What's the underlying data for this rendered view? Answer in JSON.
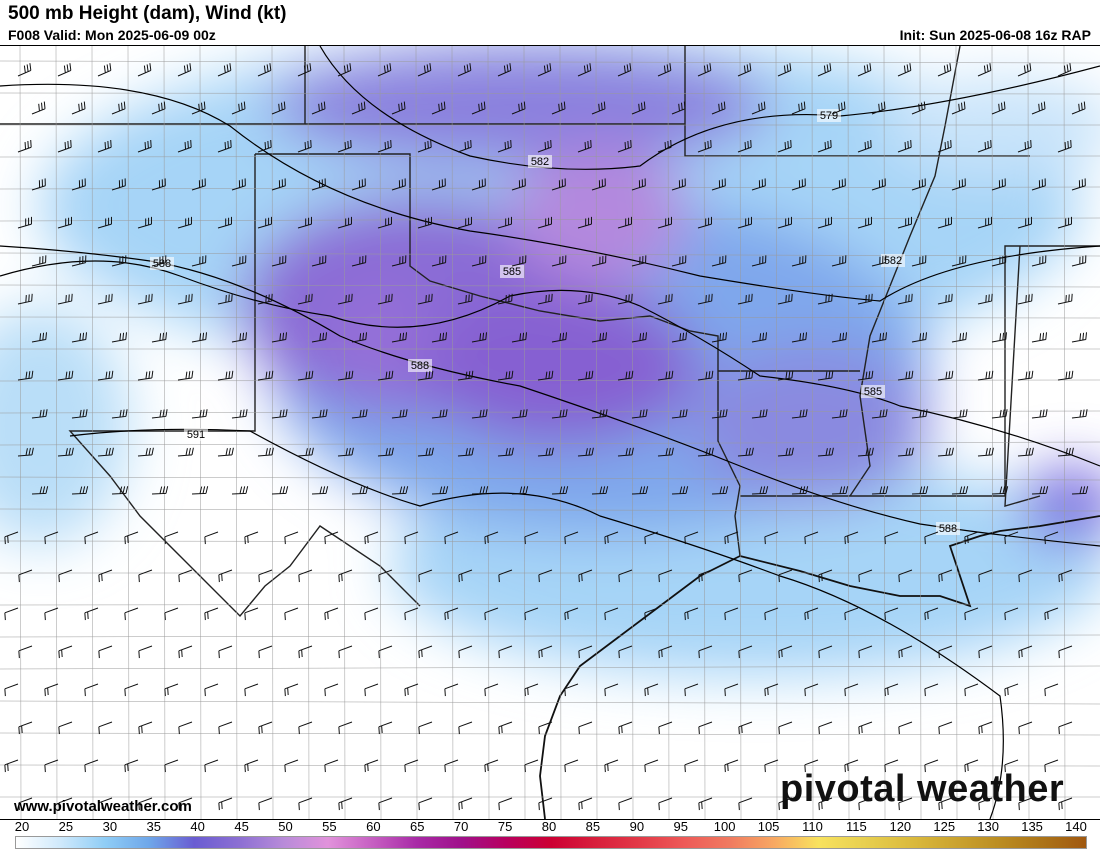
{
  "header": {
    "title": "500 mb Height (dam), Wind (kt)",
    "valid": "F008 Valid: Mon 2025-06-09 00z",
    "init": "Init: Sun 2025-06-08 16z RAP"
  },
  "footer": {
    "website": "www.pivotalweather.com",
    "brand": "pivotal weather"
  },
  "contour_labels": [
    "579",
    "582",
    "582",
    "585",
    "585",
    "588",
    "588",
    "588",
    "591"
  ],
  "colorbar": {
    "unit": "kt",
    "ticks": [
      "20",
      "25",
      "30",
      "35",
      "40",
      "45",
      "50",
      "55",
      "60",
      "65",
      "70",
      "75",
      "80",
      "85",
      "90",
      "95",
      "100",
      "105",
      "110",
      "115",
      "120",
      "125",
      "130",
      "135",
      "140"
    ],
    "colors": [
      "#ffffff",
      "#cfe9fb",
      "#8fcdf6",
      "#6ea6e9",
      "#6a5cd2",
      "#8c6fd3",
      "#b88bd9",
      "#e192db",
      "#c65fc2",
      "#a82aa6",
      "#a0108a",
      "#b8005e",
      "#cc0033",
      "#d81f3c",
      "#e33a48",
      "#ee5a58",
      "#f07a60",
      "#f8a862",
      "#f8e25e",
      "#e8d050",
      "#dcbc3e",
      "#cca530",
      "#bc8e22",
      "#ac7418",
      "#a05810"
    ]
  }
}
